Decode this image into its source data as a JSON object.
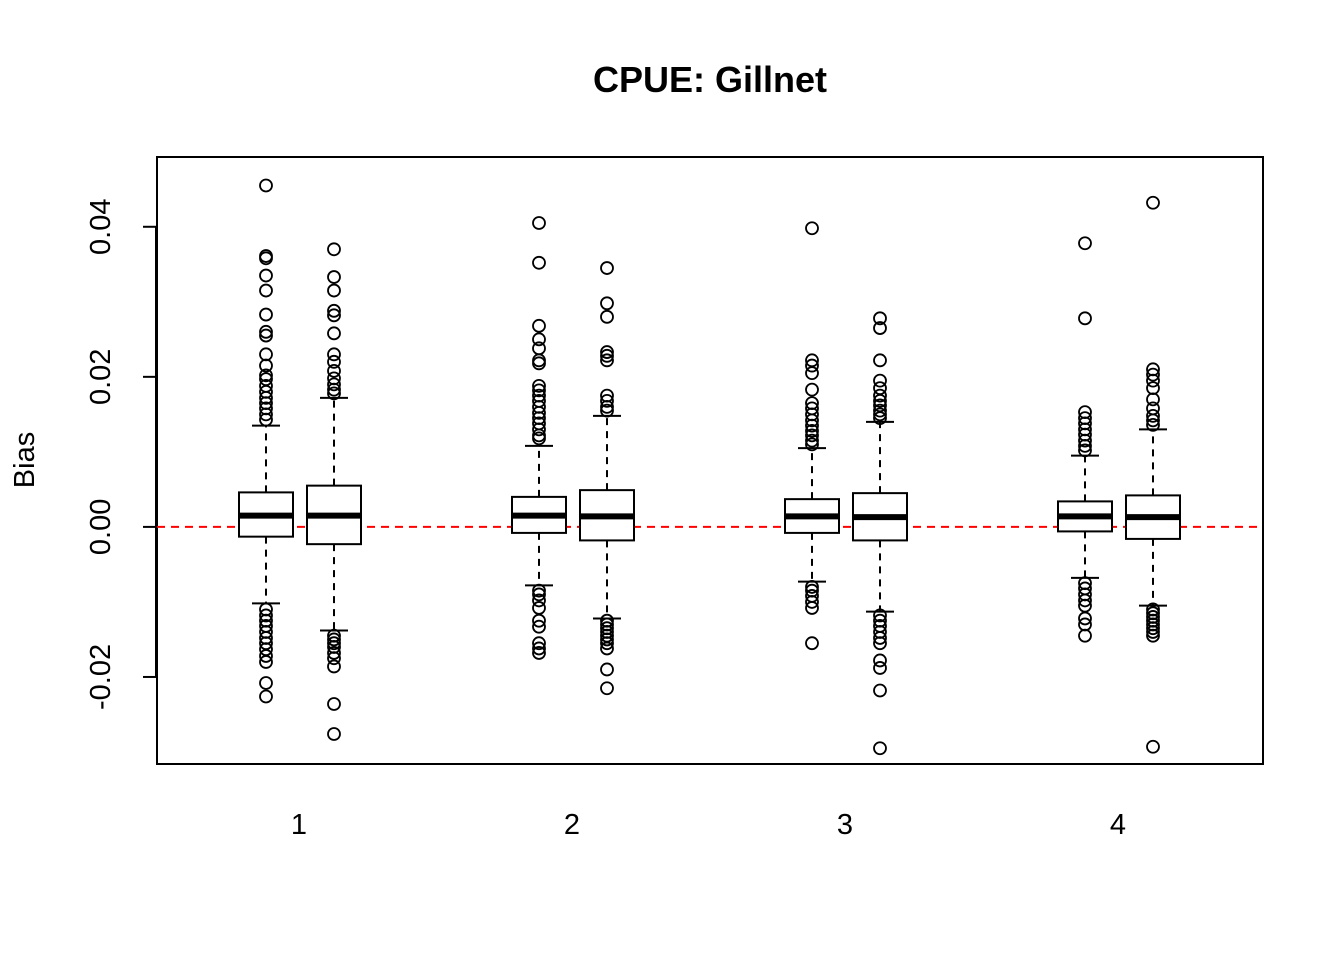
{
  "chart_data": {
    "type": "boxplot",
    "title": "CPUE: Gillnet",
    "xlabel": "",
    "ylabel": "Bias",
    "ylim": [
      -0.0316,
      0.0493
    ],
    "yticks": [
      -0.02,
      0.0,
      0.02,
      0.04
    ],
    "ytick_labels": [
      "-0.02",
      "0.00",
      "0.02",
      "0.04"
    ],
    "categories": [
      "1",
      "2",
      "3",
      "4"
    ],
    "reference_line": {
      "y": 0.0,
      "color": "#ff0000",
      "style": "dashed"
    },
    "box_color": "#000000",
    "groups": [
      {
        "category": "1",
        "boxes": [
          {
            "q1": -0.0013,
            "median": 0.0015,
            "q3": 0.0046,
            "whisker_low": -0.0102,
            "whisker_high": 0.0135,
            "outliers": [
              0.0455,
              0.0361,
              0.0358,
              0.0335,
              0.0315,
              0.0283,
              0.026,
              0.0255,
              0.023,
              0.0215,
              0.0202,
              0.0197,
              0.0188,
              0.018,
              0.0172,
              0.0165,
              0.0158,
              0.015,
              0.0143,
              -0.011,
              -0.0118,
              -0.0125,
              -0.0132,
              -0.014,
              -0.0148,
              -0.0155,
              -0.0163,
              -0.0172,
              -0.018,
              -0.0208,
              -0.0226
            ]
          },
          {
            "q1": -0.0023,
            "median": 0.0015,
            "q3": 0.0055,
            "whisker_low": -0.0138,
            "whisker_high": 0.0172,
            "outliers": [
              0.037,
              0.0333,
              0.0315,
              0.0288,
              0.0282,
              0.0258,
              0.023,
              0.022,
              0.0208,
              0.0198,
              0.019,
              0.0183,
              0.0178,
              -0.0145,
              -0.015,
              -0.0155,
              -0.016,
              -0.0168,
              -0.0175,
              -0.0186,
              -0.0236,
              -0.0276
            ]
          }
        ]
      },
      {
        "category": "2",
        "boxes": [
          {
            "q1": -0.0008,
            "median": 0.0015,
            "q3": 0.004,
            "whisker_low": -0.0078,
            "whisker_high": 0.0108,
            "outliers": [
              0.0405,
              0.0352,
              0.0268,
              0.025,
              0.0238,
              0.0222,
              0.0218,
              0.0188,
              0.0182,
              0.0175,
              0.0168,
              0.016,
              0.0152,
              0.0145,
              0.0138,
              0.013,
              0.0122,
              0.0118,
              -0.0085,
              -0.009,
              -0.0098,
              -0.0108,
              -0.0125,
              -0.0133,
              -0.0155,
              -0.0162,
              -0.0168
            ]
          },
          {
            "q1": -0.0018,
            "median": 0.0014,
            "q3": 0.0049,
            "whisker_low": -0.0122,
            "whisker_high": 0.0148,
            "outliers": [
              0.0345,
              0.0298,
              0.028,
              0.0233,
              0.0228,
              0.0222,
              0.0175,
              0.0168,
              0.016,
              0.0155,
              -0.0125,
              -0.013,
              -0.0135,
              -0.014,
              -0.0145,
              -0.015,
              -0.0155,
              -0.0162,
              -0.019,
              -0.0215
            ]
          }
        ]
      },
      {
        "category": "3",
        "boxes": [
          {
            "q1": -0.0008,
            "median": 0.0014,
            "q3": 0.0037,
            "whisker_low": -0.0073,
            "whisker_high": 0.0105,
            "outliers": [
              0.0398,
              0.0222,
              0.0215,
              0.0205,
              0.0183,
              0.0165,
              0.0158,
              0.015,
              0.0142,
              0.0135,
              0.0128,
              0.0122,
              0.0115,
              0.011,
              -0.008,
              -0.0085,
              -0.0092,
              -0.01,
              -0.0108,
              -0.0155
            ]
          },
          {
            "q1": -0.0018,
            "median": 0.0013,
            "q3": 0.0045,
            "whisker_low": -0.0113,
            "whisker_high": 0.014,
            "outliers": [
              0.0278,
              0.0265,
              0.0222,
              0.0195,
              0.0185,
              0.0175,
              0.0168,
              0.0162,
              0.0155,
              0.015,
              0.0145,
              -0.0118,
              -0.0125,
              -0.0132,
              -0.014,
              -0.0148,
              -0.0155,
              -0.0178,
              -0.0188,
              -0.0218,
              -0.0295
            ]
          }
        ]
      },
      {
        "category": "4",
        "boxes": [
          {
            "q1": -0.0006,
            "median": 0.0014,
            "q3": 0.0034,
            "whisker_low": -0.0068,
            "whisker_high": 0.0095,
            "outliers": [
              0.0378,
              0.0278,
              0.0153,
              0.0145,
              0.0138,
              0.013,
              0.0123,
              0.0115,
              0.0108,
              0.0102,
              -0.0075,
              -0.0082,
              -0.009,
              -0.0098,
              -0.0105,
              -0.0122,
              -0.013,
              -0.0145
            ]
          },
          {
            "q1": -0.0016,
            "median": 0.0013,
            "q3": 0.0042,
            "whisker_low": -0.0105,
            "whisker_high": 0.013,
            "outliers": [
              0.0432,
              0.021,
              0.0203,
              0.0195,
              0.0185,
              0.017,
              0.0158,
              0.0148,
              0.0142,
              0.0136,
              -0.011,
              -0.0115,
              -0.012,
              -0.0125,
              -0.013,
              -0.0135,
              -0.014,
              -0.0145,
              -0.0293
            ]
          }
        ]
      }
    ]
  }
}
